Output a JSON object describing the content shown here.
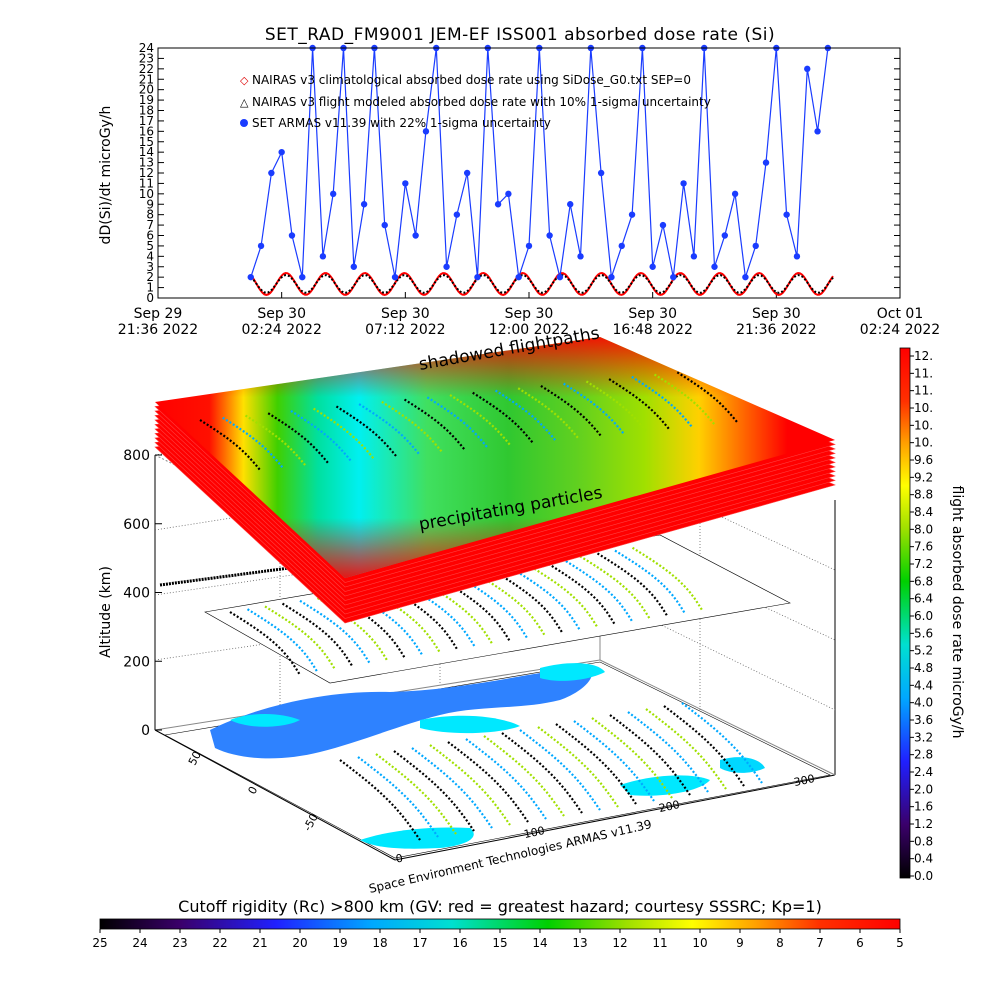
{
  "chart_data": [
    {
      "type": "line",
      "title": "SET_RAD_FM9001  JEM-EF ISS001 absorbed dose rate (Si)",
      "ylabel": "dD(Si)/dt microGy/h",
      "ylim": [
        0,
        24
      ],
      "y_ticks": [
        "0",
        "1",
        "2",
        "3",
        "4",
        "5",
        "6",
        "7",
        "8",
        "9",
        "10",
        "11",
        "12",
        "13",
        "14",
        "15",
        "16",
        "17",
        "18",
        "19",
        "20",
        "21",
        "22",
        "23",
        "24"
      ],
      "x_ticks": [
        {
          "line1": "Sep 29",
          "line2": "21:36  2022"
        },
        {
          "line1": "Sep 30",
          "line2": "02:24  2022"
        },
        {
          "line1": "Sep 30",
          "line2": "07:12  2022"
        },
        {
          "line1": "Sep 30",
          "line2": "12:00  2022"
        },
        {
          "line1": "Sep 30",
          "line2": "16:48  2022"
        },
        {
          "line1": "Sep 30",
          "line2": "21:36  2022"
        },
        {
          "line1": "Oct 01",
          "line2": "02:24  2022"
        }
      ],
      "legend": [
        "NAIRAS v3 climatological absorbed dose rate using SiDose_G0.txt SEP=0",
        "NAIRAS v3 flight modeled absorbed dose rate with 10% 1-sigma uncertainty",
        "SET ARMAS v11.39 with 22% 1-sigma uncertainty"
      ],
      "legend_placement": "top-left",
      "series": [
        {
          "name": "SET ARMAS v11.39 with 22% 1-sigma uncertainty",
          "color": "#1a3cff",
          "x_hours_from_start": [
            3.6,
            4.0,
            4.4,
            4.8,
            5.2,
            5.6,
            6.0,
            6.4,
            6.8,
            7.2,
            7.6,
            8.0,
            8.4,
            8.8,
            9.2,
            9.6,
            10.0,
            10.4,
            10.8,
            11.2,
            11.6,
            12.0,
            12.4,
            12.8,
            13.2,
            13.6,
            14.0,
            14.4,
            14.8,
            15.2,
            15.6,
            16.0,
            16.4,
            16.8,
            17.2,
            17.6,
            18.0,
            18.4,
            18.8,
            19.2,
            19.6,
            20.0,
            20.4,
            20.8,
            21.2,
            21.6,
            22.0,
            22.4,
            22.8,
            23.2,
            23.6,
            24.0,
            24.4,
            24.8,
            25.2,
            25.6,
            26.0
          ],
          "values": [
            2.0,
            5.0,
            12.0,
            14.0,
            6.0,
            2.0,
            24.0,
            4.0,
            10.0,
            24.0,
            3.0,
            9.0,
            24.0,
            7.0,
            2.0,
            11.0,
            6.0,
            16.0,
            24.0,
            3.0,
            8.0,
            12.0,
            2.0,
            24.0,
            9.0,
            10.0,
            2.0,
            5.0,
            24.0,
            6.0,
            2.0,
            9.0,
            4.0,
            24.0,
            12.0,
            2.0,
            5.0,
            8.0,
            24.0,
            3.0,
            7.0,
            2.0,
            11.0,
            4.0,
            24.0,
            3.0,
            6.0,
            10.0,
            2.0,
            5.0,
            13.0,
            24.0,
            8.0,
            4.0,
            22.0,
            16.0,
            24.0
          ]
        },
        {
          "name": "NAIRAS v3 climatological absorbed dose rate using SiDose_G0.txt SEP=0",
          "color": "#ff0000",
          "shape": "periodic",
          "min": 0.3,
          "max": 2.4
        },
        {
          "name": "NAIRAS v3 flight modeled absorbed dose rate with 10% 1-sigma uncertainty",
          "color": "#000000",
          "shape": "periodic",
          "min": 0.5,
          "max": 2.2
        }
      ]
    },
    {
      "type": "heatmap",
      "ylabel": "Altitude (km)",
      "z_ticks": [
        "0",
        "200",
        "400",
        "600",
        "800"
      ],
      "lat_ticks": [
        "50",
        "0",
        "-50"
      ],
      "lon_ticks": [
        "0",
        "100",
        "200",
        "300"
      ],
      "annotations": [
        "shadowed flightpaths",
        "precipitating particles"
      ],
      "credit": "Space Environment Technologies ARMAS v11.39"
    },
    {
      "type": "colorbar",
      "label": "flight absorbed dose rate microGy/h",
      "ticks": [
        "0.0",
        "0.4",
        "0.8",
        "1.2",
        "1.6",
        "2.0",
        "2.4",
        "2.8",
        "3.2",
        "3.6",
        "4.0",
        "4.4",
        "4.8",
        "5.2",
        "5.6",
        "6.0",
        "6.4",
        "6.8",
        "7.2",
        "7.6",
        "8.0",
        "8.4",
        "8.8",
        "9.2",
        "9.6",
        "10.",
        "10.",
        "10.",
        "11.",
        "11.",
        "12."
      ]
    },
    {
      "type": "colorbar",
      "label": "Cutoff rigidity (Rc) >800 km (GV: red = greatest hazard; courtesy SSSRC; Kp=1)",
      "ticks": [
        "25",
        "24",
        "23",
        "22",
        "21",
        "20",
        "19",
        "18",
        "17",
        "16",
        "15",
        "14",
        "13",
        "12",
        "11",
        "10",
        "9",
        "8",
        "7",
        "6",
        "5"
      ]
    }
  ]
}
